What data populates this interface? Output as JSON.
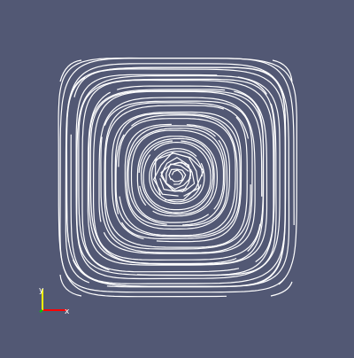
{
  "viewport": {
    "background": "#525874",
    "stroke_color": "#ffffff",
    "visualization": "streamlines"
  },
  "axes_triad": {
    "x_label": "x",
    "y_label": "y",
    "x_color": "#ff0000",
    "y_color": "#ffff00",
    "z_color": "#00cc00"
  }
}
